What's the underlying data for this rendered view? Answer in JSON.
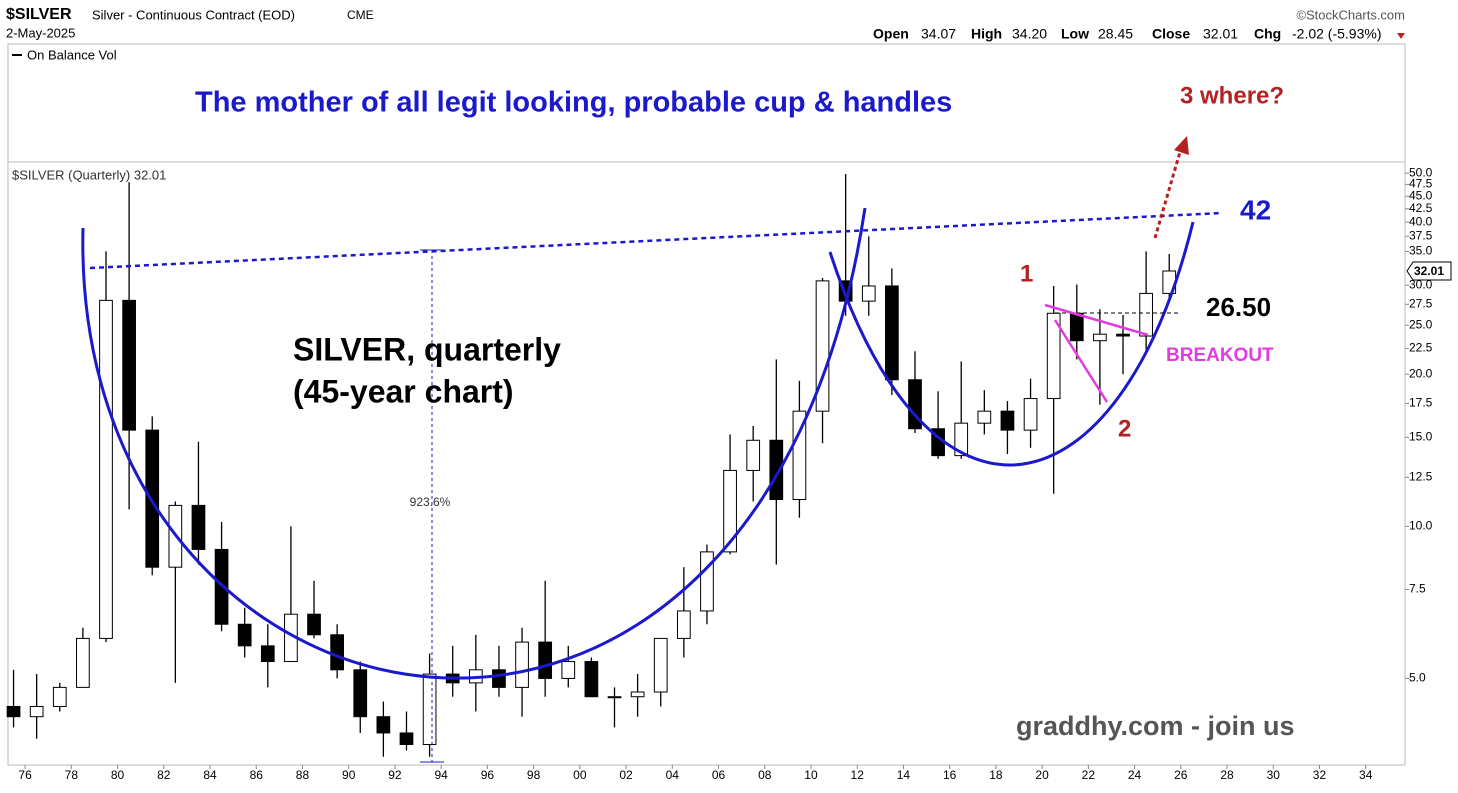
{
  "header": {
    "symbol": "$SILVER",
    "name": "Silver - Continuous Contract (EOD)",
    "exchange": "CME",
    "date": "2-May-2025",
    "source": "©StockCharts.com",
    "open_label": "Open",
    "open": "34.07",
    "high_label": "High",
    "high": "34.20",
    "low_label": "Low",
    "low": "28.45",
    "close_label": "Close",
    "close": "32.01",
    "chg_label": "Chg",
    "chg": "-2.02 (-5.93%)"
  },
  "panels": {
    "obv": "On Balance Vol",
    "main": "$SILVER (Quarterly) 32.01"
  },
  "chart_data": {
    "type": "candlestick",
    "x": [
      1975,
      1976,
      1977,
      1978,
      1979,
      1980,
      1981,
      1982,
      1983,
      1984,
      1985,
      1986,
      1987,
      1988,
      1989,
      1990,
      1991,
      1992,
      1993,
      1994,
      1995,
      1996,
      1997,
      1998,
      1999,
      2000,
      2001,
      2002,
      2003,
      2004,
      2005,
      2006,
      2007,
      2008,
      2009,
      2010,
      2011,
      2012,
      2013,
      2014,
      2015,
      2016,
      2017,
      2018,
      2019,
      2020,
      2021,
      2022,
      2023,
      2024,
      2025
    ],
    "open": [
      4.4,
      4.2,
      4.4,
      4.8,
      6.0,
      28,
      15.5,
      8.3,
      11.0,
      9.0,
      6.4,
      5.8,
      5.4,
      6.7,
      6.1,
      5.2,
      4.2,
      3.9,
      3.7,
      5.1,
      4.9,
      5.2,
      4.8,
      5.9,
      5.0,
      5.4,
      4.6,
      4.6,
      4.7,
      6.0,
      6.8,
      8.9,
      12.9,
      14.8,
      11.3,
      16.9,
      30.6,
      27.9,
      29.9,
      19.5,
      15.6,
      13.8,
      16.0,
      16.9,
      15.5,
      17.9,
      26.4,
      23.3,
      24.0,
      23.8,
      28.9
    ],
    "high": [
      5.2,
      5.1,
      4.9,
      6.3,
      35,
      48,
      16.5,
      11.2,
      14.7,
      10.2,
      6.9,
      6.4,
      10.0,
      7.8,
      6.4,
      5.4,
      4.5,
      4.3,
      5.6,
      5.8,
      6.1,
      5.8,
      6.3,
      7.8,
      5.8,
      5.5,
      4.8,
      5.1,
      6.0,
      8.3,
      9.2,
      15.2,
      15.8,
      21.4,
      19.4,
      31.0,
      49.8,
      37.5,
      32.4,
      22.2,
      18.5,
      21.2,
      18.6,
      17.7,
      19.6,
      29.9,
      30.1,
      26.9,
      26.2,
      35.0,
      34.6
    ],
    "low": [
      4.0,
      3.8,
      4.3,
      4.8,
      5.9,
      10.8,
      8.0,
      4.9,
      8.4,
      6.2,
      5.5,
      4.8,
      5.4,
      6.0,
      5.0,
      3.9,
      3.5,
      3.6,
      3.5,
      4.6,
      4.3,
      4.6,
      4.2,
      4.6,
      4.8,
      4.6,
      4.0,
      4.2,
      4.4,
      5.5,
      6.4,
      8.8,
      11.2,
      8.4,
      10.4,
      14.6,
      26.1,
      26.1,
      18.2,
      15.3,
      13.6,
      13.6,
      15.2,
      13.9,
      14.3,
      11.6,
      21.4,
      17.4,
      20.0,
      22.3,
      28.3
    ],
    "close": [
      4.2,
      4.4,
      4.8,
      6.0,
      28,
      15.5,
      8.3,
      11.0,
      9.0,
      6.4,
      5.8,
      5.4,
      6.7,
      6.1,
      5.2,
      4.2,
      3.9,
      3.7,
      5.1,
      4.9,
      5.2,
      4.8,
      5.9,
      5.0,
      5.4,
      4.6,
      4.6,
      4.7,
      6.0,
      6.8,
      8.9,
      12.9,
      14.8,
      11.3,
      16.9,
      30.6,
      27.9,
      29.9,
      19.5,
      15.6,
      13.8,
      16.0,
      16.9,
      15.5,
      17.9,
      26.4,
      23.3,
      24.0,
      23.8,
      28.9,
      32.01
    ],
    "up_color": "#ffffff",
    "down_color": "#000000",
    "last_price": 32.01,
    "xlim": [
      1975.26,
      2035.7
    ],
    "xticks": [
      {
        "value": 1976,
        "label": "76"
      },
      {
        "value": 1978,
        "label": "78"
      },
      {
        "value": 1980,
        "label": "80"
      },
      {
        "value": 1982,
        "label": "82"
      },
      {
        "value": 1984,
        "label": "84"
      },
      {
        "value": 1986,
        "label": "86"
      },
      {
        "value": 1988,
        "label": "88"
      },
      {
        "value": 1990,
        "label": "90"
      },
      {
        "value": 1992,
        "label": "92"
      },
      {
        "value": 1994,
        "label": "94"
      },
      {
        "value": 1996,
        "label": "96"
      },
      {
        "value": 1998,
        "label": "98"
      },
      {
        "value": 2000,
        "label": "00"
      },
      {
        "value": 2002,
        "label": "02"
      },
      {
        "value": 2004,
        "label": "04"
      },
      {
        "value": 2006,
        "label": "06"
      },
      {
        "value": 2008,
        "label": "08"
      },
      {
        "value": 2010,
        "label": "10"
      },
      {
        "value": 2012,
        "label": "12"
      },
      {
        "value": 2014,
        "label": "14"
      },
      {
        "value": 2016,
        "label": "16"
      },
      {
        "value": 2018,
        "label": "18"
      },
      {
        "value": 2020,
        "label": "20"
      },
      {
        "value": 2022,
        "label": "22"
      },
      {
        "value": 2024,
        "label": "24"
      },
      {
        "value": 2026,
        "label": "26"
      },
      {
        "value": 2028,
        "label": "28"
      },
      {
        "value": 2030,
        "label": "30"
      },
      {
        "value": 2032,
        "label": "32"
      },
      {
        "value": 2034,
        "label": "34"
      }
    ],
    "ylim": [
      3.37,
      52.6
    ],
    "log_scale": true,
    "yticks": [
      {
        "value": 5,
        "label": "5.0"
      },
      {
        "value": 7.5,
        "label": "7.5"
      },
      {
        "value": 10,
        "label": "10.0"
      },
      {
        "value": 12.5,
        "label": "12.5"
      },
      {
        "value": 15,
        "label": "15.0"
      },
      {
        "value": 17.5,
        "label": "17.5"
      },
      {
        "value": 20,
        "label": "20.0"
      },
      {
        "value": 22.5,
        "label": "22.5"
      },
      {
        "value": 25,
        "label": "25.0"
      },
      {
        "value": 27.5,
        "label": "27.5"
      },
      {
        "value": 30,
        "label": "30.0"
      },
      {
        "value": 35,
        "label": "35.0"
      },
      {
        "value": 37.5,
        "label": "37.5"
      },
      {
        "value": 40,
        "label": "40.0"
      },
      {
        "value": 42.5,
        "label": "42.5"
      },
      {
        "value": 45,
        "label": "45.0"
      },
      {
        "value": 47.5,
        "label": "47.5"
      },
      {
        "value": 50,
        "label": "50.0"
      }
    ],
    "grid": false,
    "annotations": [
      "The mother of all legit looking, probable cup & handles",
      "3 where?",
      "42",
      "1",
      "2",
      "26.50",
      "BREAKOUT",
      "SILVER, quarterly",
      "(45-year chart)",
      "923.6%",
      "graddhy.com - join us"
    ]
  }
}
